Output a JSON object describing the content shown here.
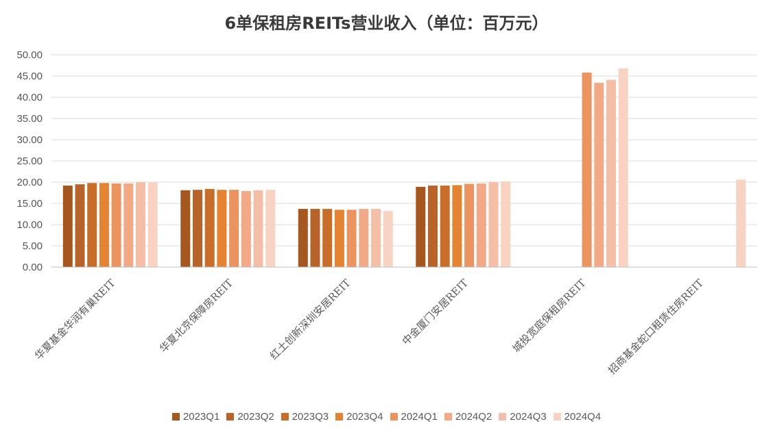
{
  "chart_data": {
    "type": "bar",
    "title": "6单保租房REITs营业收入（单位：百万元）",
    "xlabel": "",
    "ylabel": "",
    "ylim": [
      0,
      50
    ],
    "yticks": [
      "0.00",
      "5.00",
      "10.00",
      "15.00",
      "20.00",
      "25.00",
      "30.00",
      "35.00",
      "40.00",
      "45.00",
      "50.00"
    ],
    "grid": true,
    "legend_position": "bottom",
    "categories": [
      "华夏基金华润有巢REIT",
      "华夏北京保障房REIT",
      "红土创新深圳安居REIT",
      "中金厦门安居REIT",
      "城投宽庭保租房REIT",
      "招商基金蛇口租赁住房REIT"
    ],
    "series": [
      {
        "name": "2023Q1",
        "color": "#a5571f",
        "values": [
          19.2,
          18.1,
          13.7,
          18.9,
          null,
          null
        ]
      },
      {
        "name": "2023Q2",
        "color": "#b8632a",
        "values": [
          19.5,
          18.2,
          13.7,
          19.2,
          null,
          null
        ]
      },
      {
        "name": "2023Q3",
        "color": "#c96e28",
        "values": [
          19.8,
          18.4,
          13.7,
          19.2,
          null,
          null
        ]
      },
      {
        "name": "2023Q4",
        "color": "#e48433",
        "values": [
          19.8,
          18.2,
          13.5,
          19.3,
          null,
          null
        ]
      },
      {
        "name": "2024Q1",
        "color": "#ec9460",
        "values": [
          19.7,
          18.2,
          13.5,
          19.6,
          45.8,
          null
        ]
      },
      {
        "name": "2024Q2",
        "color": "#f1aa85",
        "values": [
          19.7,
          17.9,
          13.7,
          19.7,
          43.4,
          null
        ]
      },
      {
        "name": "2024Q3",
        "color": "#f5bea6",
        "values": [
          20.0,
          18.1,
          13.7,
          20.0,
          44.1,
          null
        ]
      },
      {
        "name": "2024Q4",
        "color": "#f8d3c1",
        "values": [
          19.9,
          18.2,
          13.2,
          20.2,
          46.8,
          20.6
        ]
      }
    ]
  }
}
